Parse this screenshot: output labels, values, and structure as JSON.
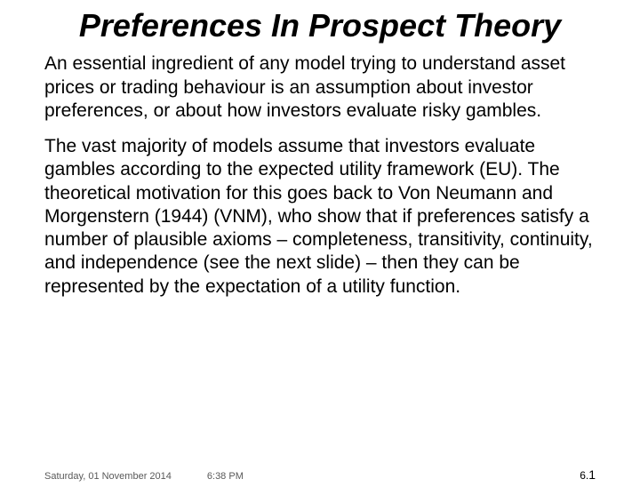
{
  "title": "Preferences In Prospect Theory",
  "paragraphs": {
    "p1": "An essential ingredient of any model trying to understand asset prices or trading behaviour is an assumption about investor preferences, or about how investors evaluate risky gambles.",
    "p2": "The vast majority of models assume that investors evaluate gambles according to the expected utility framework (EU). The theoretical motivation for this goes back to Von Neumann and Morgenstern (1944) (VNM), who show that if preferences satisfy a number of plausible axioms – completeness, transitivity, continuity, and independence (see the next slide) – then they can be represented by the expectation of a utility function."
  },
  "footer": {
    "date": "Saturday, 01 November 2014",
    "time": "6:38 PM",
    "page_prefix": "6.",
    "page_number": "1"
  },
  "colors": {
    "background": "#ffffff",
    "text": "#000000",
    "footer_text": "#595959"
  },
  "fonts": {
    "body": "Comic Sans MS",
    "footer": "Arial"
  }
}
